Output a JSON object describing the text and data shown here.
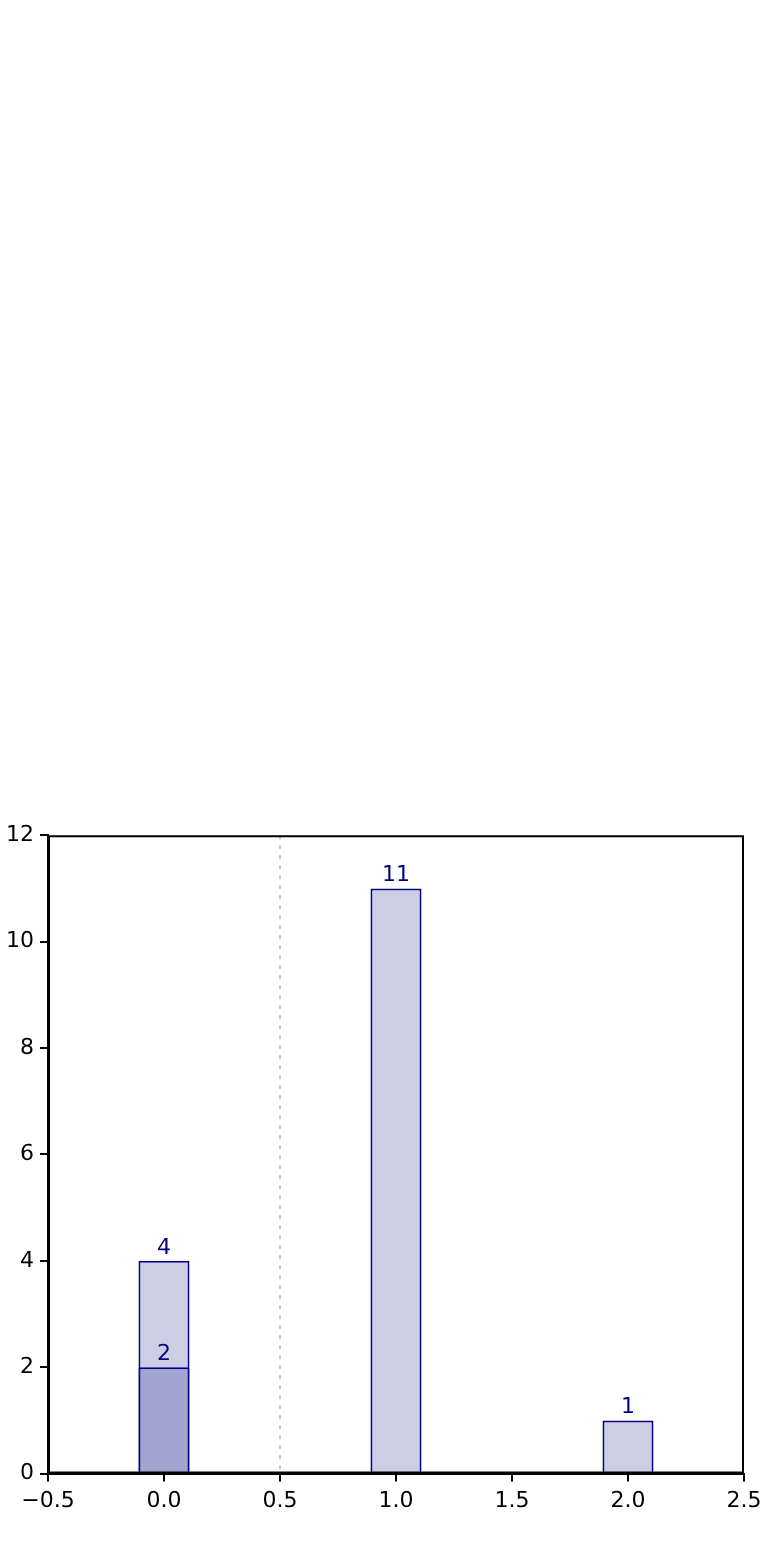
{
  "chart_data": {
    "type": "bar",
    "x": [
      0,
      1,
      2
    ],
    "series": [
      {
        "color": "#cdcde6",
        "values": [
          4,
          11,
          1
        ]
      },
      {
        "color": "#a4a4d2",
        "values": [
          2,
          null,
          null
        ]
      }
    ],
    "xlim": [
      -0.5,
      2.5
    ],
    "xticks": [
      -0.5,
      {
        "value": 0,
        "label": "0.0"
      },
      0.5,
      {
        "value": 1,
        "label": "1.0"
      },
      1.5,
      {
        "value": 2,
        "label": "2.0"
      },
      2.5
    ],
    "ylim": [
      0,
      12
    ],
    "yticks": [
      0,
      2,
      4,
      6,
      8,
      10,
      12
    ],
    "data_labels": true,
    "grid": false,
    "ref_lines": [
      {
        "axis": "x",
        "value": 0.5,
        "color": "#c8c8c8",
        "line_style": "dotted"
      }
    ]
  }
}
